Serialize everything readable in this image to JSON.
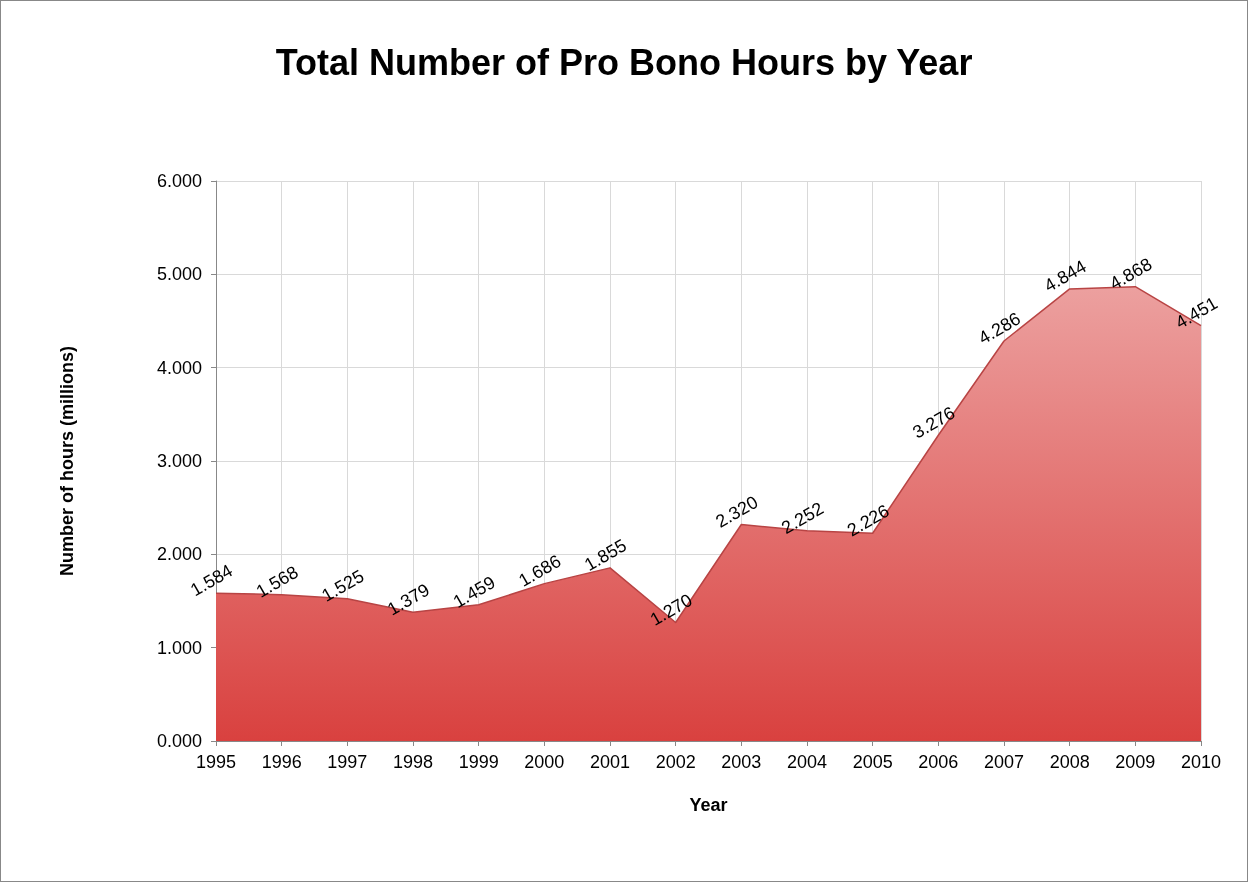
{
  "chart_data": {
    "type": "area",
    "title": "Total Number of Pro Bono Hours by Year",
    "xlabel": "Year",
    "ylabel": "Number of hours (millions)",
    "categories": [
      "1995",
      "1996",
      "1997",
      "1998",
      "1999",
      "2000",
      "2001",
      "2002",
      "2003",
      "2004",
      "2005",
      "2006",
      "2007",
      "2008",
      "2009",
      "2010"
    ],
    "values": [
      1.584,
      1.568,
      1.525,
      1.379,
      1.459,
      1.686,
      1.855,
      1.27,
      2.32,
      2.252,
      2.226,
      3.276,
      4.286,
      4.844,
      4.868,
      4.451
    ],
    "value_labels": [
      "1.584",
      "1.568",
      "1.525",
      "1.379",
      "1.459",
      "1.686",
      "1.855",
      "1.270",
      "2.320",
      "2.252",
      "2.226",
      "3.276",
      "4.286",
      "4.844",
      "4.868",
      "4.451"
    ],
    "color": "#d9413f",
    "ylim": [
      0,
      6
    ],
    "yticks": [
      {
        "value": 0,
        "label": "0.000"
      },
      {
        "value": 1,
        "label": "1.000"
      },
      {
        "value": 2,
        "label": "2.000"
      },
      {
        "value": 3,
        "label": "3.000"
      },
      {
        "value": 4,
        "label": "4.000"
      },
      {
        "value": 5,
        "label": "5.000"
      },
      {
        "value": 6,
        "label": "6.000"
      }
    ],
    "grid": true
  }
}
